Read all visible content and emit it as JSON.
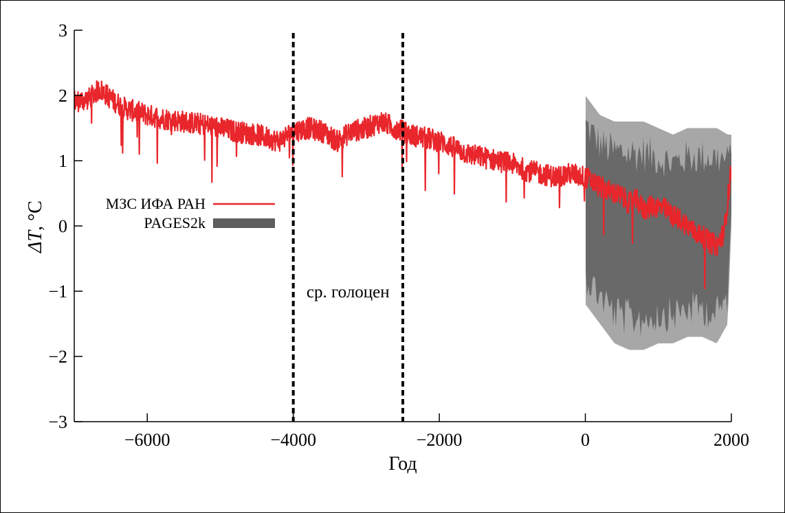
{
  "chart_data": {
    "type": "line",
    "xlabel": "Год",
    "ylabel_symbol": "ΔT",
    "ylabel_unit": ", °C",
    "xlim": [
      -7000,
      2000
    ],
    "ylim": [
      -3,
      3
    ],
    "x_ticks": [
      -6000,
      -4000,
      -2000,
      0,
      2000
    ],
    "x_tick_labels": [
      "−6000",
      "−4000",
      "−2000",
      "0",
      "2000"
    ],
    "y_ticks": [
      3,
      2,
      1,
      0,
      -1,
      -2,
      -3
    ],
    "y_tick_labels": [
      "3",
      "2",
      "1",
      "0",
      "−1",
      "−2",
      "−3"
    ],
    "grid": false,
    "legend_position": "left",
    "annotation": {
      "text": "ср. голоцен",
      "vlines_x": [
        -4000,
        -2500
      ],
      "label_y": -1
    },
    "series": [
      {
        "name": "МЗС ИФА РАН",
        "style": "line",
        "color": "#e8262b",
        "x": [
          -7000,
          -6800,
          -6650,
          -6500,
          -6300,
          -6000,
          -5800,
          -5500,
          -5200,
          -5000,
          -4800,
          -4500,
          -4200,
          -4000,
          -3800,
          -3600,
          -3400,
          -3200,
          -3000,
          -2800,
          -2600,
          -2400,
          -2200,
          -2000,
          -1800,
          -1600,
          -1400,
          -1200,
          -1000,
          -800,
          -600,
          -400,
          -200,
          0,
          200,
          400,
          500,
          600,
          700,
          800,
          900,
          1000,
          1100,
          1200,
          1300,
          1400,
          1500,
          1600,
          1700,
          1800,
          1900,
          2000
        ],
        "y": [
          1.9,
          1.95,
          2.1,
          1.95,
          1.8,
          1.7,
          1.65,
          1.6,
          1.55,
          1.5,
          1.45,
          1.4,
          1.3,
          1.45,
          1.5,
          1.45,
          1.3,
          1.45,
          1.5,
          1.6,
          1.5,
          1.4,
          1.35,
          1.3,
          1.2,
          1.1,
          1.05,
          1.0,
          0.95,
          0.85,
          0.8,
          0.75,
          0.8,
          0.75,
          0.6,
          0.5,
          0.45,
          0.35,
          0.4,
          0.25,
          0.3,
          0.3,
          0.25,
          0.15,
          0.1,
          0.0,
          -0.1,
          -0.15,
          -0.25,
          -0.3,
          -0.1,
          0.9
        ]
      },
      {
        "name": "PAGES2k",
        "style": "band",
        "color": "#5e5e5e",
        "x": [
          0,
          200,
          400,
          600,
          800,
          1000,
          1200,
          1400,
          1600,
          1800,
          1950,
          2000
        ],
        "y_lower": [
          -1.2,
          -1.5,
          -1.8,
          -1.9,
          -1.9,
          -1.8,
          -1.8,
          -1.7,
          -1.7,
          -1.8,
          -1.5,
          0.0
        ],
        "y_upper": [
          2.0,
          1.7,
          1.6,
          1.6,
          1.6,
          1.5,
          1.4,
          1.5,
          1.5,
          1.5,
          1.4,
          1.4
        ]
      }
    ]
  }
}
